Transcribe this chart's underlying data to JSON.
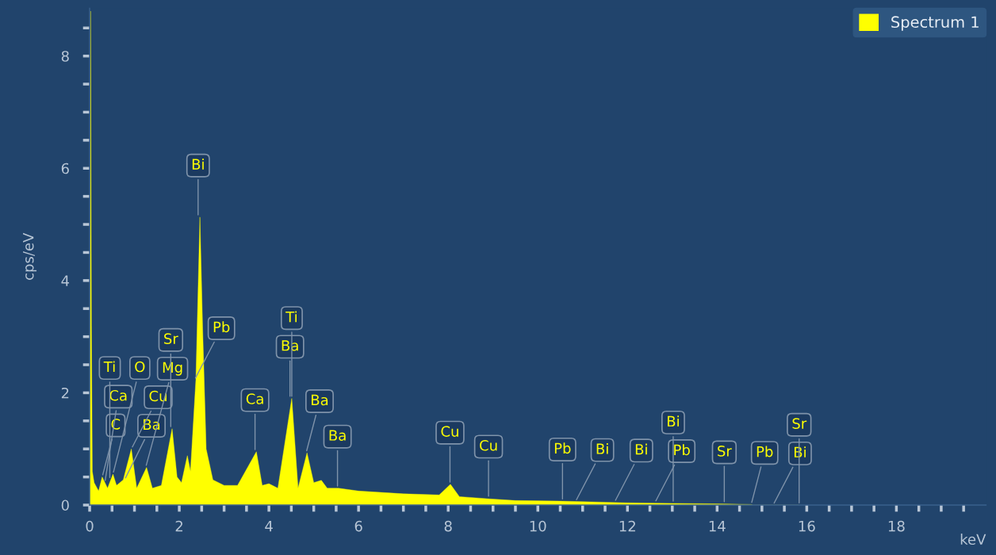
{
  "chart_data": {
    "type": "area",
    "xlabel": "keV",
    "ylabel": "cps/eV",
    "xlim": [
      0,
      20
    ],
    "ylim": [
      0,
      8.85
    ],
    "xticks": [
      0,
      {
        "value": 0.5,
        "label": null
      },
      {
        "value": 1,
        "label": null
      },
      {
        "value": 1.5,
        "label": null
      },
      2,
      {
        "value": 2.5,
        "label": null
      },
      {
        "value": 3,
        "label": null
      },
      {
        "value": 3.5,
        "label": null
      },
      4,
      {
        "value": 4.5,
        "label": null
      },
      {
        "value": 5,
        "label": null
      },
      {
        "value": 5.5,
        "label": null
      },
      6,
      {
        "value": 6.5,
        "label": null
      },
      {
        "value": 7,
        "label": null
      },
      {
        "value": 7.5,
        "label": null
      },
      8,
      {
        "value": 8.5,
        "label": null
      },
      {
        "value": 9,
        "label": null
      },
      {
        "value": 9.5,
        "label": null
      },
      10,
      {
        "value": 10.5,
        "label": null
      },
      {
        "value": 11,
        "label": null
      },
      {
        "value": 11.5,
        "label": null
      },
      12,
      {
        "value": 12.5,
        "label": null
      },
      {
        "value": 13,
        "label": null
      },
      {
        "value": 13.5,
        "label": null
      },
      14,
      {
        "value": 14.5,
        "label": null
      },
      {
        "value": 15,
        "label": null
      },
      {
        "value": 15.5,
        "label": null
      },
      16,
      {
        "value": 16.5,
        "label": null
      },
      {
        "value": 17,
        "label": null
      },
      {
        "value": 17.5,
        "label": null
      },
      18,
      {
        "value": 18.5,
        "label": null
      },
      {
        "value": 19,
        "label": null
      },
      {
        "value": 19.5,
        "label": null
      }
    ],
    "yticks": [
      0,
      {
        "value": 0.5,
        "label": null
      },
      {
        "value": 1,
        "label": null
      },
      {
        "value": 1.5,
        "label": null
      },
      2,
      {
        "value": 2.5,
        "label": null
      },
      {
        "value": 3,
        "label": null
      },
      {
        "value": 3.5,
        "label": null
      },
      4,
      {
        "value": 4.5,
        "label": null
      },
      {
        "value": 5,
        "label": null
      },
      {
        "value": 5.5,
        "label": null
      },
      6,
      {
        "value": 6.5,
        "label": null
      },
      {
        "value": 7,
        "label": null
      },
      {
        "value": 7.5,
        "label": null
      },
      8,
      {
        "value": 8.5,
        "label": null
      }
    ],
    "grid": false,
    "legend": "top right",
    "series": [
      {
        "name": "Spectrum 1",
        "color": "#ffff00",
        "x": [
          0,
          0.02,
          0.04,
          0.06,
          0.1,
          0.2,
          0.28,
          0.4,
          0.52,
          0.6,
          0.75,
          0.93,
          1.05,
          1.27,
          1.4,
          1.6,
          1.84,
          1.95,
          2.05,
          2.18,
          2.25,
          2.37,
          2.46,
          2.52,
          2.6,
          2.75,
          3.0,
          3.3,
          3.72,
          3.85,
          4.0,
          4.2,
          4.51,
          4.65,
          4.85,
          5.0,
          5.17,
          5.3,
          5.55,
          6.0,
          7.0,
          7.8,
          8.05,
          8.25,
          8.92,
          9.5,
          10.5,
          12.0,
          13.0,
          14.0,
          14.76,
          14.8,
          15.25,
          15.83
        ],
        "values": [
          0,
          8.8,
          3.2,
          0.6,
          0.4,
          0.25,
          0.5,
          0.3,
          0.55,
          0.35,
          0.45,
          1.0,
          0.3,
          0.67,
          0.3,
          0.35,
          1.36,
          0.5,
          0.4,
          0.88,
          0.6,
          2.23,
          5.13,
          3.18,
          1.0,
          0.45,
          0.35,
          0.35,
          0.95,
          0.35,
          0.38,
          0.3,
          1.9,
          0.3,
          0.93,
          0.4,
          0.44,
          0.3,
          0.3,
          0.25,
          0.2,
          0.18,
          0.37,
          0.15,
          0.11,
          0.08,
          0.07,
          0.04,
          0.03,
          0.02,
          0.01,
          0,
          0,
          0
        ]
      }
    ],
    "annotations": [
      {
        "text": "C",
        "x": 0.28,
        "y": 0.5
      },
      {
        "text": "Ca",
        "x": 0.34,
        "y": 0.4
      },
      {
        "text": "Ti",
        "x": 0.45,
        "y": 0.45
      },
      {
        "text": "O",
        "x": 0.52,
        "y": 0.55
      },
      {
        "text": "Ba",
        "x": 0.78,
        "y": 0.45
      },
      {
        "text": "Cu",
        "x": 0.93,
        "y": 1.0
      },
      {
        "text": "Mg",
        "x": 1.25,
        "y": 0.67
      },
      {
        "text": "Sr",
        "x": 1.81,
        "y": 1.36
      },
      {
        "text": "Pb",
        "x": 2.34,
        "y": 2.23
      },
      {
        "text": "Bi",
        "x": 2.42,
        "y": 5.13
      },
      {
        "text": "Ca",
        "x": 3.69,
        "y": 0.95
      },
      {
        "text": "Ba",
        "x": 4.47,
        "y": 1.9
      },
      {
        "text": "Ti",
        "x": 4.51,
        "y": 1.9
      },
      {
        "text": "Ba",
        "x": 4.83,
        "y": 0.93
      },
      {
        "text": "Ba",
        "x": 5.53,
        "y": 0.3
      },
      {
        "text": "Cu",
        "x": 8.04,
        "y": 0.37
      },
      {
        "text": "Cu",
        "x": 8.9,
        "y": 0.12
      },
      {
        "text": "Pb",
        "x": 10.55,
        "y": 0.07
      },
      {
        "text": "Bi",
        "x": 10.84,
        "y": 0.06
      },
      {
        "text": "Bi",
        "x": 11.71,
        "y": 0.05
      },
      {
        "text": "Pb",
        "x": 12.61,
        "y": 0.04
      },
      {
        "text": "Bi",
        "x": 13.02,
        "y": 0.03
      },
      {
        "text": "Sr",
        "x": 14.16,
        "y": 0.02
      },
      {
        "text": "Pb",
        "x": 14.76,
        "y": 0.01
      },
      {
        "text": "Bi",
        "x": 15.25,
        "y": 0
      },
      {
        "text": "Sr",
        "x": 15.83,
        "y": 0
      }
    ]
  }
}
